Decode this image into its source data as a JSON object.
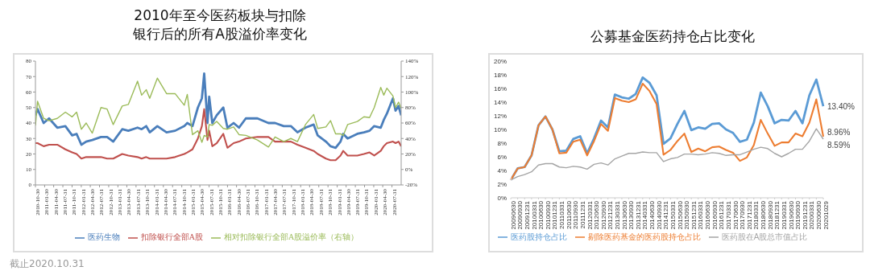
{
  "chart_data": [
    {
      "type": "line",
      "title": "2010年至今医药板块与扣除银行后的所有A股溢价率变化",
      "annotations": [
        "截止2020.10.31"
      ],
      "x": [
        "2010-10-30",
        "2010-11-20",
        "2011-01-20",
        "2011-03-15",
        "2011-06-05",
        "2011-08-25",
        "2011-11-01",
        "2011-12-15",
        "2012-02-01",
        "2012-03-20",
        "2012-05-20",
        "2012-08-15",
        "2012-10-15",
        "2012-12-15",
        "2013-03-15",
        "2013-05-15",
        "2013-08-15",
        "2013-09-25",
        "2013-11-10",
        "2013-12-15",
        "2014-03-01",
        "2014-06-01",
        "2014-08-25",
        "2014-11-25",
        "2014-12-25",
        "2015-02-15",
        "2015-04-10",
        "2015-05-20",
        "2015-06-12",
        "2015-07-15",
        "2015-08-01",
        "2015-09-01",
        "2015-10-15",
        "2015-12-20",
        "2016-01-30",
        "2016-04-01",
        "2016-05-25",
        "2016-08-01",
        "2016-11-25",
        "2017-03-15",
        "2017-05-20",
        "2017-08-15",
        "2017-10-25",
        "2017-12-30",
        "2018-03-20",
        "2018-06-10",
        "2018-07-20",
        "2018-10-10",
        "2018-11-25",
        "2019-01-15",
        "2019-03-05",
        "2019-04-01",
        "2019-05-15",
        "2019-08-20",
        "2019-10-25",
        "2019-12-20",
        "2020-02-05",
        "2020-04-10",
        "2020-05-10",
        "2020-06-10",
        "2020-08-10",
        "2020-09-05",
        "2020-10-05",
        "2020-10-31"
      ],
      "series": [
        {
          "name": "医药生物",
          "color": "#4a7ebb",
          "values": [
            45,
            49,
            40,
            43,
            37,
            38,
            32,
            33,
            26,
            28,
            29,
            31,
            31,
            28,
            36,
            35,
            37,
            36,
            38,
            34,
            38,
            34,
            35,
            38,
            40,
            38,
            50,
            56,
            72,
            40,
            57,
            40,
            45,
            50,
            37,
            40,
            37,
            43,
            43,
            40,
            40,
            38,
            38,
            34,
            37,
            39,
            32,
            28,
            25,
            24,
            28,
            33,
            30,
            33,
            34,
            35,
            38,
            37,
            42,
            46,
            56,
            48,
            51,
            45
          ]
        },
        {
          "name": "扣除银行全部A股",
          "color": "#c0504d",
          "values": [
            27,
            27,
            25,
            26,
            26,
            23,
            21,
            20,
            17,
            18,
            18,
            18,
            17,
            17,
            20,
            19,
            18,
            17,
            18,
            17,
            17,
            17,
            18,
            20,
            21,
            23,
            30,
            38,
            49,
            29,
            35,
            25,
            27,
            33,
            24,
            27,
            28,
            30,
            31,
            31,
            28,
            28,
            28,
            26,
            24,
            22,
            20,
            17,
            16,
            16,
            19,
            22,
            19,
            19,
            20,
            21,
            19,
            22,
            25,
            27,
            28,
            27,
            28,
            25
          ]
        },
        {
          "name": "相对扣除银行全部A股溢价率（右轴）",
          "color": "#9bbb59",
          "axis": "y2",
          "values": [
            57,
            88,
            66,
            63,
            66,
            74,
            68,
            74,
            52,
            60,
            47,
            80,
            78,
            58,
            82,
            84,
            114,
            96,
            103,
            92,
            118,
            98,
            98,
            83,
            97,
            45,
            50,
            35,
            44,
            42,
            58,
            57,
            62,
            53,
            52,
            55,
            45,
            44,
            38,
            29,
            42,
            36,
            40,
            36,
            58,
            71,
            53,
            55,
            63,
            46,
            46,
            44,
            58,
            62,
            68,
            67,
            80,
            106,
            96,
            105,
            95,
            80,
            87,
            79
          ]
        }
      ],
      "xlim": [
        "2010-10-30",
        "2020-10-31"
      ],
      "xticks": [
        "2010-10-30",
        "2011-01-30",
        "2011-04-30",
        "2011-07-31",
        "2011-10-31",
        "2012-01-31",
        "2012-04-30",
        "2012-07-31",
        "2012-10-31",
        "2013-01-31",
        "2013-04-30",
        "2013-07-31",
        "2013-10-31",
        "2014-01-31",
        "2014-04-30",
        "2014-07-31",
        "2014-10-31",
        "2015-01-31",
        "2015-04-30",
        "2015-07-31",
        "2015-10-31",
        "2016-01-31",
        "2016-04-30",
        "2016-07-31",
        "2016-10-31",
        "2017-01-31",
        "2017-04-30",
        "2017-07-31",
        "2017-10-31",
        "2018-01-31",
        "2018-04-30",
        "2018-07-31",
        "2018-10-31",
        "2019-01-31",
        "2019-04-30",
        "2019-07-31",
        "2019-10-31",
        "2020-01-31",
        "2020-04-30",
        "2020-07-31"
      ],
      "ylim": [
        0,
        80
      ],
      "yticks": [
        0,
        10,
        20,
        30,
        40,
        50,
        60,
        70,
        80
      ],
      "y2lim": [
        -20,
        140
      ],
      "y2ticks": [
        {
          "value": -20,
          "label": "-20%"
        },
        {
          "value": 0,
          "label": "0%"
        },
        {
          "value": 20,
          "label": "20%"
        },
        {
          "value": 40,
          "label": "40%"
        },
        {
          "value": 60,
          "label": "60%"
        },
        {
          "value": 80,
          "label": "80%"
        },
        {
          "value": 100,
          "label": "100%"
        },
        {
          "value": 120,
          "label": "120%"
        },
        {
          "value": 140,
          "label": "140%"
        }
      ],
      "grid": false,
      "legend": "bottom",
      "marker": "none"
    },
    {
      "type": "line",
      "title": "公募基金医药持仓占比变化",
      "categories": [
        "20090630",
        "20090930",
        "20091231",
        "20100331",
        "20100630",
        "20100930",
        "20101231",
        "20110331",
        "20110630",
        "20110930",
        "20111231",
        "20120331",
        "20120630",
        "20120930",
        "20121231",
        "20130331",
        "20130630",
        "20130930",
        "20131231",
        "20140331",
        "20140630",
        "20140930",
        "20141231",
        "20150331",
        "20150630",
        "20150930",
        "20151231",
        "20160331",
        "20160630",
        "20160930",
        "20161231",
        "20170331",
        "20170630",
        "20170930",
        "20171231",
        "20180331",
        "20180630",
        "20180930",
        "20181231",
        "20190331",
        "20190630",
        "20190930",
        "20191231",
        "20200331",
        "20200630",
        "20201029"
      ],
      "series": [
        {
          "name": "医药股持仓占比",
          "color": "#5b9bd5",
          "values": [
            2.6,
            4.3,
            4.5,
            6.2,
            10.6,
            11.9,
            10.0,
            6.8,
            6.9,
            8.6,
            9.0,
            6.5,
            8.7,
            11.3,
            10.3,
            15.1,
            14.7,
            14.5,
            15.2,
            17.6,
            16.8,
            15.0,
            7.9,
            8.7,
            10.8,
            12.7,
            9.9,
            10.3,
            10.1,
            10.8,
            10.9,
            10.0,
            9.5,
            8.2,
            8.5,
            11.0,
            15.4,
            13.4,
            10.9,
            11.4,
            11.3,
            12.7,
            10.9,
            15.0,
            17.3,
            13.4
          ],
          "value_labels": [
            null,
            null,
            null,
            null,
            null,
            null,
            null,
            null,
            null,
            null,
            null,
            null,
            null,
            null,
            null,
            null,
            null,
            null,
            null,
            null,
            null,
            null,
            null,
            null,
            null,
            null,
            null,
            null,
            null,
            null,
            null,
            null,
            null,
            null,
            null,
            null,
            null,
            null,
            null,
            null,
            null,
            null,
            null,
            null,
            null,
            "13.40%"
          ]
        },
        {
          "name": "剔除医药基金的医药股持仓占比",
          "color": "#ed7d31",
          "values": [
            2.6,
            4.3,
            4.5,
            6.2,
            10.6,
            11.9,
            10.0,
            6.5,
            6.6,
            8.2,
            8.5,
            6.2,
            8.3,
            10.8,
            9.8,
            14.6,
            14.2,
            14.0,
            14.4,
            16.7,
            15.6,
            13.7,
            6.3,
            7.0,
            8.3,
            9.4,
            6.7,
            7.2,
            6.8,
            7.4,
            7.5,
            7.0,
            6.6,
            5.4,
            5.9,
            7.7,
            11.4,
            9.4,
            7.6,
            8.1,
            8.1,
            9.4,
            9.0,
            11.0,
            14.4,
            8.96
          ],
          "value_labels": [
            null,
            null,
            null,
            null,
            null,
            null,
            null,
            null,
            null,
            null,
            null,
            null,
            null,
            null,
            null,
            null,
            null,
            null,
            null,
            null,
            null,
            null,
            null,
            null,
            null,
            null,
            null,
            null,
            null,
            null,
            null,
            null,
            null,
            null,
            null,
            null,
            null,
            null,
            null,
            null,
            null,
            null,
            null,
            null,
            null,
            "8.96%"
          ]
        },
        {
          "name": "医药股在A股总市值占比",
          "color": "#a5a5a5",
          "values": [
            2.6,
            3.1,
            3.4,
            3.8,
            4.8,
            5.0,
            5.0,
            4.5,
            4.4,
            4.6,
            4.5,
            4.2,
            4.9,
            5.1,
            4.8,
            5.7,
            6.1,
            6.5,
            6.5,
            6.7,
            6.6,
            6.6,
            5.3,
            5.7,
            5.9,
            6.4,
            6.4,
            6.3,
            6.4,
            6.6,
            6.5,
            6.2,
            6.3,
            6.3,
            6.7,
            7.1,
            7.4,
            7.2,
            6.5,
            6.0,
            6.5,
            7.1,
            7.1,
            8.3,
            10.1,
            8.59
          ],
          "value_labels": [
            null,
            null,
            null,
            null,
            null,
            null,
            null,
            null,
            null,
            null,
            null,
            null,
            null,
            null,
            null,
            null,
            null,
            null,
            null,
            null,
            null,
            null,
            null,
            null,
            null,
            null,
            null,
            null,
            null,
            null,
            null,
            null,
            null,
            null,
            null,
            null,
            null,
            null,
            null,
            null,
            null,
            null,
            null,
            null,
            null,
            "8.59%"
          ]
        }
      ],
      "ylim": [
        0,
        20
      ],
      "yticks": [
        {
          "value": 0,
          "label": "0%"
        },
        {
          "value": 2,
          "label": "2%"
        },
        {
          "value": 4,
          "label": "4%"
        },
        {
          "value": 6,
          "label": "6%"
        },
        {
          "value": 8,
          "label": "8%"
        },
        {
          "value": 10,
          "label": "10%"
        },
        {
          "value": 12,
          "label": "12%"
        },
        {
          "value": 14,
          "label": "14%"
        },
        {
          "value": 16,
          "label": "16%"
        },
        {
          "value": 18,
          "label": "18%"
        },
        {
          "value": 20,
          "label": "20%"
        }
      ],
      "grid": false,
      "legend": "bottom",
      "marker": "none"
    }
  ]
}
